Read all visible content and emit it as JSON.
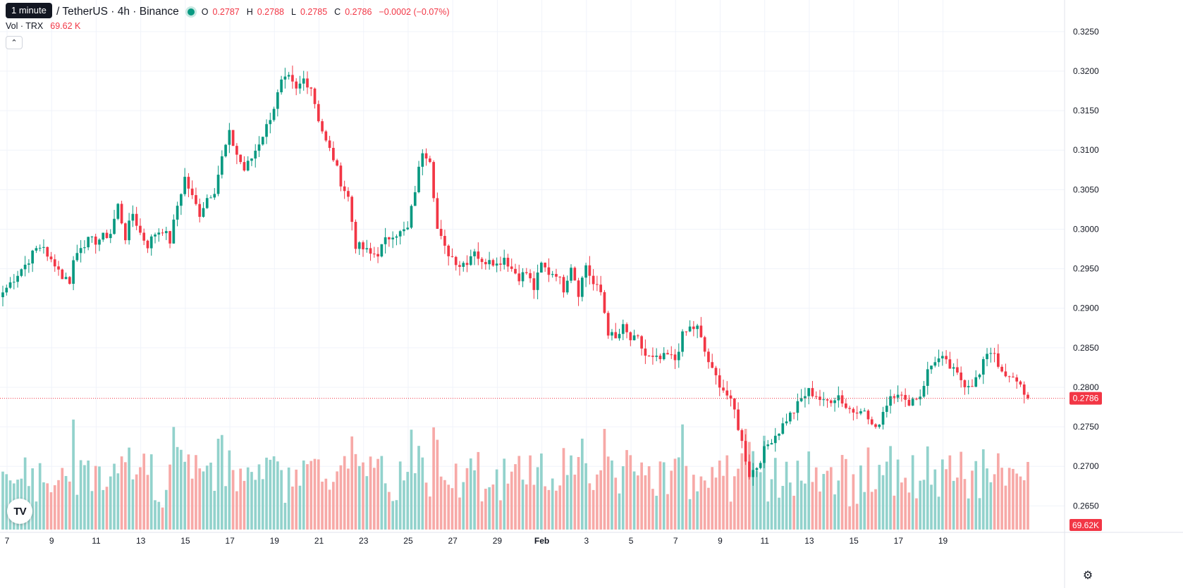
{
  "legend": {
    "tooltip": "1 minute",
    "symbol": "/ TetherUS · 4h · Binance",
    "ohlc": [
      {
        "key": "O",
        "value": "0.2787"
      },
      {
        "key": "H",
        "value": "0.2788"
      },
      {
        "key": "L",
        "value": "0.2785"
      },
      {
        "key": "C",
        "value": "0.2786"
      }
    ],
    "change": "−0.0002 (−0.07%)"
  },
  "volume_legend": {
    "label": "Vol · TRX",
    "value": "69.62 K"
  },
  "colors": {
    "up": "#089981",
    "down": "#f23645",
    "up_volume": "#92d2cc",
    "down_volume": "#f7a9a7",
    "grid": "#f0f3fa"
  },
  "icons": {
    "logo": "tradingview-logo-icon",
    "settings": "gear-icon",
    "collapse": "chevron-up-icon"
  },
  "chart_data": {
    "type": "candlestick",
    "interval": "4h",
    "y_range": [
      0.262,
      0.3265
    ],
    "y_ticks": [
      "0.3250",
      "0.3200",
      "0.3150",
      "0.3100",
      "0.3050",
      "0.3000",
      "0.2950",
      "0.2900",
      "0.2850",
      "0.2800",
      "0.2750",
      "0.2700",
      "0.2650"
    ],
    "x_ticks": [
      "7",
      "9",
      "11",
      "13",
      "15",
      "17",
      "19",
      "21",
      "23",
      "25",
      "27",
      "29",
      "Feb",
      "3",
      "5",
      "7",
      "9",
      "11",
      "13",
      "15",
      "17",
      "19"
    ],
    "last_price": 0.2786,
    "last_price_label": "0.2786",
    "last_volume_label": "69.62K",
    "volume_max": 160,
    "anchors": [
      [
        0,
        0.292
      ],
      [
        5,
        0.295
      ],
      [
        6,
        0.2955
      ],
      [
        9,
        0.2975
      ],
      [
        11,
        0.298
      ],
      [
        12,
        0.2962
      ],
      [
        14,
        0.2958
      ],
      [
        16,
        0.294
      ],
      [
        18,
        0.2935
      ],
      [
        19,
        0.296
      ],
      [
        21,
        0.298
      ],
      [
        23,
        0.2985
      ],
      [
        25,
        0.2985
      ],
      [
        27,
        0.299
      ],
      [
        29,
        0.2995
      ],
      [
        31,
        0.303
      ],
      [
        33,
        0.299
      ],
      [
        35,
        0.302
      ],
      [
        37,
        0.2995
      ],
      [
        39,
        0.298
      ],
      [
        41,
        0.2995
      ],
      [
        43,
        0.3
      ],
      [
        45,
        0.2985
      ],
      [
        47,
        0.303
      ],
      [
        49,
        0.3065
      ],
      [
        51,
        0.304
      ],
      [
        53,
        0.302
      ],
      [
        55,
        0.304
      ],
      [
        57,
        0.305
      ],
      [
        59,
        0.309
      ],
      [
        61,
        0.312
      ],
      [
        63,
        0.3095
      ],
      [
        65,
        0.3075
      ],
      [
        67,
        0.309
      ],
      [
        69,
        0.311
      ],
      [
        71,
        0.313
      ],
      [
        73,
        0.3155
      ],
      [
        75,
        0.3185
      ],
      [
        77,
        0.319
      ],
      [
        79,
        0.3175
      ],
      [
        81,
        0.319
      ],
      [
        83,
        0.318
      ],
      [
        85,
        0.314
      ],
      [
        87,
        0.311
      ],
      [
        89,
        0.309
      ],
      [
        91,
        0.306
      ],
      [
        93,
        0.304
      ],
      [
        95,
        0.298
      ],
      [
        97,
        0.2975
      ],
      [
        99,
        0.2968
      ],
      [
        101,
        0.297
      ],
      [
        103,
        0.2985
      ],
      [
        105,
        0.2995
      ],
      [
        107,
        0.2995
      ],
      [
        109,
        0.3
      ],
      [
        111,
        0.305
      ],
      [
        113,
        0.31
      ],
      [
        115,
        0.309
      ],
      [
        117,
        0.3
      ],
      [
        119,
        0.2975
      ],
      [
        121,
        0.2965
      ],
      [
        123,
        0.2955
      ],
      [
        125,
        0.296
      ],
      [
        127,
        0.2975
      ],
      [
        129,
        0.2955
      ],
      [
        131,
        0.2965
      ],
      [
        133,
        0.2955
      ],
      [
        135,
        0.2965
      ],
      [
        137,
        0.295
      ],
      [
        139,
        0.294
      ],
      [
        141,
        0.2945
      ],
      [
        143,
        0.2925
      ],
      [
        145,
        0.2955
      ],
      [
        147,
        0.2945
      ],
      [
        149,
        0.2945
      ],
      [
        151,
        0.2925
      ],
      [
        153,
        0.2955
      ],
      [
        155,
        0.292
      ],
      [
        157,
        0.2955
      ],
      [
        159,
        0.293
      ],
      [
        161,
        0.292
      ],
      [
        163,
        0.287
      ],
      [
        165,
        0.286
      ],
      [
        167,
        0.2875
      ],
      [
        169,
        0.286
      ],
      [
        171,
        0.286
      ],
      [
        173,
        0.284
      ],
      [
        175,
        0.2835
      ],
      [
        177,
        0.2835
      ],
      [
        179,
        0.284
      ],
      [
        181,
        0.2835
      ],
      [
        183,
        0.2865
      ],
      [
        185,
        0.2875
      ],
      [
        187,
        0.2875
      ],
      [
        189,
        0.2845
      ],
      [
        191,
        0.282
      ],
      [
        193,
        0.2805
      ],
      [
        195,
        0.279
      ],
      [
        197,
        0.277
      ],
      [
        199,
        0.273
      ],
      [
        201,
        0.269
      ],
      [
        203,
        0.27
      ],
      [
        205,
        0.272
      ],
      [
        207,
        0.2735
      ],
      [
        209,
        0.2745
      ],
      [
        211,
        0.276
      ],
      [
        213,
        0.277
      ],
      [
        215,
        0.2785
      ],
      [
        217,
        0.2795
      ],
      [
        219,
        0.279
      ],
      [
        221,
        0.278
      ],
      [
        223,
        0.2785
      ],
      [
        225,
        0.279
      ],
      [
        227,
        0.2775
      ],
      [
        229,
        0.277
      ],
      [
        231,
        0.2775
      ],
      [
        233,
        0.276
      ],
      [
        235,
        0.2745
      ],
      [
        237,
        0.277
      ],
      [
        239,
        0.279
      ],
      [
        241,
        0.2795
      ],
      [
        243,
        0.278
      ],
      [
        245,
        0.2785
      ],
      [
        247,
        0.279
      ],
      [
        249,
        0.282
      ],
      [
        251,
        0.2835
      ],
      [
        253,
        0.2835
      ],
      [
        255,
        0.2825
      ],
      [
        257,
        0.2815
      ],
      [
        259,
        0.2805
      ],
      [
        261,
        0.2805
      ],
      [
        263,
        0.2815
      ],
      [
        265,
        0.2845
      ],
      [
        267,
        0.2845
      ],
      [
        269,
        0.2815
      ],
      [
        271,
        0.281
      ],
      [
        273,
        0.281
      ],
      [
        275,
        0.2795
      ],
      [
        276,
        0.2786
      ]
    ]
  }
}
